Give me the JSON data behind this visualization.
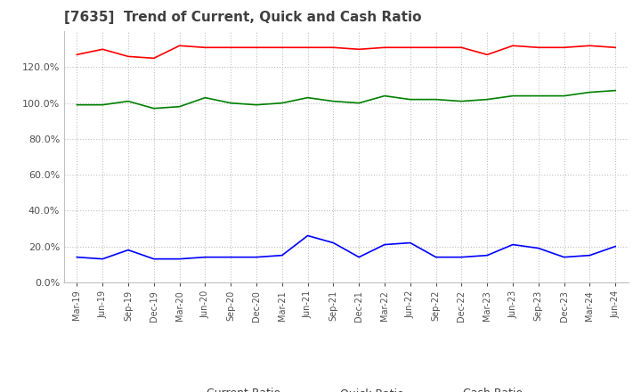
{
  "title": "[7635]  Trend of Current, Quick and Cash Ratio",
  "title_fontsize": 11,
  "title_color": "#404040",
  "x_labels": [
    "Mar-19",
    "Jun-19",
    "Sep-19",
    "Dec-19",
    "Mar-20",
    "Jun-20",
    "Sep-20",
    "Dec-20",
    "Mar-21",
    "Jun-21",
    "Sep-21",
    "Dec-21",
    "Mar-22",
    "Jun-22",
    "Sep-22",
    "Dec-22",
    "Mar-23",
    "Jun-23",
    "Sep-23",
    "Dec-23",
    "Mar-24",
    "Jun-24"
  ],
  "current_ratio": [
    127,
    130,
    126,
    125,
    132,
    131,
    131,
    131,
    131,
    131,
    131,
    130,
    131,
    131,
    131,
    131,
    127,
    132,
    131,
    131,
    132,
    131
  ],
  "quick_ratio": [
    99,
    99,
    101,
    97,
    98,
    103,
    100,
    99,
    100,
    103,
    101,
    100,
    104,
    102,
    102,
    101,
    102,
    104,
    104,
    104,
    106,
    107
  ],
  "cash_ratio": [
    14,
    13,
    18,
    13,
    13,
    14,
    14,
    14,
    15,
    26,
    22,
    14,
    21,
    22,
    14,
    14,
    15,
    21,
    19,
    14,
    15,
    20
  ],
  "current_color": "#ff0000",
  "quick_color": "#008000",
  "cash_color": "#0000ff",
  "ylim": [
    0,
    140
  ],
  "yticks": [
    0,
    20,
    40,
    60,
    80,
    100,
    120
  ],
  "background_color": "#ffffff",
  "grid_color": "#c0c0c0",
  "legend_labels": [
    "Current Ratio",
    "Quick Ratio",
    "Cash Ratio"
  ]
}
